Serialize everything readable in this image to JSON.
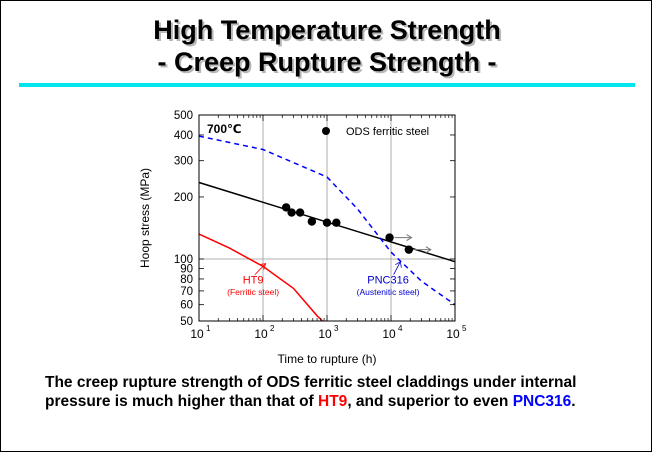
{
  "slide": {
    "title_line1": "High Temperature Strength",
    "title_line2": "- Creep Rupture Strength -",
    "accent_color": "#00e5ee",
    "caption": {
      "part1": "The creep rupture strength of ODS ferritic steel claddings under internal pressure is much higher than that of ",
      "ht9": "HT9",
      "part2": ", and superior to even ",
      "pnc316": "PNC316",
      "part3": "."
    }
  },
  "chart_data": {
    "type": "scatter",
    "xlabel": "Time to rupture (h)",
    "ylabel": "Hoop stress (MPa)",
    "x_scale": "log",
    "y_scale": "log",
    "xlim": [
      10,
      100000
    ],
    "ylim": [
      50,
      500
    ],
    "x_ticks": [
      {
        "value": 10,
        "base": "10",
        "exp": "1"
      },
      {
        "value": 100,
        "base": "10",
        "exp": "2"
      },
      {
        "value": 1000,
        "base": "10",
        "exp": "3"
      },
      {
        "value": 10000,
        "base": "10",
        "exp": "4"
      },
      {
        "value": 100000,
        "base": "10",
        "exp": "5"
      }
    ],
    "y_ticks": [
      {
        "value": 500,
        "label": "500"
      },
      {
        "value": 400,
        "label": "400"
      },
      {
        "value": 300,
        "label": "300"
      },
      {
        "value": 200,
        "label": "200"
      },
      {
        "value": 100,
        "label": "100"
      },
      {
        "value": 90,
        "label": "90"
      },
      {
        "value": 80,
        "label": "80"
      },
      {
        "value": 70,
        "label": "70"
      },
      {
        "value": 60,
        "label": "60"
      },
      {
        "value": 50,
        "label": "50"
      }
    ],
    "grid_x": [
      100,
      1000,
      10000
    ],
    "grid_y": [
      100
    ],
    "temperature_label": "700℃",
    "legend": {
      "label": "ODS ferritic steel",
      "position": "top-right"
    },
    "series": [
      {
        "name": "ODS ferritic steel",
        "kind": "points",
        "color": "#000000",
        "points": [
          [
            230,
            178
          ],
          [
            280,
            168
          ],
          [
            380,
            168
          ],
          [
            580,
            152
          ],
          [
            1000,
            150
          ],
          [
            1400,
            150
          ],
          [
            9500,
            127
          ],
          [
            19000,
            111
          ]
        ],
        "runout_arrows_from": [
          [
            9500,
            127
          ],
          [
            19000,
            111
          ]
        ]
      },
      {
        "name": "ODS fit",
        "kind": "line",
        "color": "#000000",
        "points": [
          [
            10,
            235
          ],
          [
            100000,
            97
          ]
        ]
      },
      {
        "name": "HT9",
        "sublabel": "(Ferritic steel)",
        "kind": "line",
        "color": "#ff0000",
        "points": [
          [
            10,
            132
          ],
          [
            30,
            113
          ],
          [
            100,
            92
          ],
          [
            300,
            72
          ],
          [
            700,
            53
          ],
          [
            850,
            50
          ]
        ]
      },
      {
        "name": "PNC316",
        "sublabel": "(Austenitic steel)",
        "kind": "dashed-line",
        "color": "#0000ff",
        "points": [
          [
            10,
            395
          ],
          [
            100,
            340
          ],
          [
            1000,
            250
          ],
          [
            3000,
            175
          ],
          [
            10000,
            108
          ],
          [
            30000,
            78
          ],
          [
            100000,
            60
          ]
        ]
      }
    ]
  }
}
